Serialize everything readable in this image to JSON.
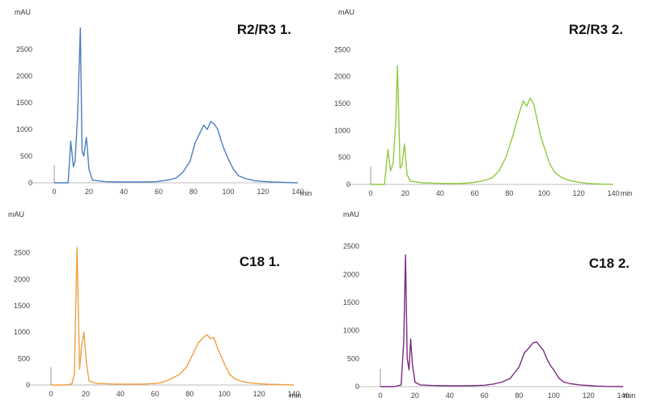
{
  "chart_data": [
    {
      "type": "line",
      "title": "R2/R3 1.",
      "ylabel": "mAU",
      "xlabel": "min",
      "xlim": [
        0,
        140
      ],
      "ylim": [
        0,
        3000
      ],
      "xticks": [
        "0",
        "20",
        "40",
        "60",
        "80",
        "100",
        "120",
        "140"
      ],
      "yticks": [
        "0",
        "500",
        "1000",
        "1500",
        "2000",
        "2500"
      ],
      "color": "#4a7fc1",
      "grid": false,
      "series": [
        {
          "x": [
            0,
            4,
            8,
            9.5,
            11,
            12,
            13.5,
            15,
            16,
            17,
            18.5,
            20,
            22,
            30,
            40,
            50,
            58,
            62,
            66,
            70,
            74,
            78,
            81,
            84,
            86,
            88,
            90,
            92,
            94,
            96,
            98,
            100,
            103,
            106,
            110,
            115,
            120,
            125,
            130,
            135,
            140
          ],
          "y": [
            0,
            0,
            0,
            780,
            300,
            400,
            1300,
            2900,
            600,
            500,
            850,
            250,
            50,
            20,
            15,
            15,
            20,
            35,
            55,
            90,
            200,
            400,
            750,
            950,
            1080,
            1000,
            1150,
            1100,
            1000,
            780,
            600,
            450,
            250,
            130,
            80,
            40,
            25,
            15,
            10,
            5,
            0
          ]
        }
      ]
    },
    {
      "type": "line",
      "title": "R2/R3 2.",
      "ylabel": "mAU",
      "xlabel": "min",
      "xlim": [
        0,
        140
      ],
      "ylim": [
        0,
        3000
      ],
      "xticks": [
        "0",
        "20",
        "40",
        "60",
        "80",
        "100",
        "120",
        "140"
      ],
      "yticks": [
        "0",
        "500",
        "1000",
        "1500",
        "2000",
        "2500"
      ],
      "color": "#8fca3e",
      "grid": false,
      "series": [
        {
          "x": [
            0,
            5,
            8,
            10,
            11.5,
            13,
            14.5,
            15.5,
            17,
            18,
            19.5,
            21,
            23,
            30,
            40,
            50,
            58,
            64,
            70,
            74,
            78,
            82,
            85,
            88,
            90,
            92,
            94,
            96,
            98,
            100,
            103,
            106,
            110,
            115,
            120,
            125,
            130,
            135,
            140
          ],
          "y": [
            0,
            0,
            0,
            650,
            250,
            400,
            1200,
            2200,
            300,
            350,
            750,
            180,
            60,
            30,
            20,
            15,
            30,
            60,
            120,
            250,
            500,
            900,
            1250,
            1550,
            1450,
            1600,
            1500,
            1200,
            900,
            700,
            400,
            230,
            130,
            70,
            40,
            20,
            10,
            5,
            0
          ]
        }
      ]
    },
    {
      "type": "line",
      "title": "C18 1.",
      "ylabel": "mAU",
      "xlabel": "min",
      "xlim": [
        0,
        140
      ],
      "ylim": [
        0,
        3000
      ],
      "xticks": [
        "0",
        "20",
        "40",
        "60",
        "80",
        "100",
        "120",
        "140"
      ],
      "yticks": [
        "0",
        "500",
        "1000",
        "1500",
        "2000",
        "2500"
      ],
      "color": "#f0a040",
      "grid": false,
      "series": [
        {
          "x": [
            0,
            8,
            12,
            13.5,
            15,
            16.5,
            17.5,
            19,
            20.5,
            22,
            26,
            35,
            45,
            55,
            62,
            66,
            70,
            74,
            78,
            82,
            85,
            88,
            90,
            92,
            94,
            96,
            98,
            100,
            103,
            106,
            110,
            115,
            120,
            125,
            130,
            135,
            140
          ],
          "y": [
            0,
            0,
            20,
            200,
            2600,
            300,
            700,
            1000,
            400,
            80,
            30,
            20,
            15,
            20,
            35,
            70,
            130,
            200,
            330,
            600,
            800,
            900,
            950,
            880,
            900,
            700,
            550,
            400,
            200,
            120,
            70,
            40,
            25,
            15,
            10,
            5,
            0
          ]
        }
      ]
    },
    {
      "type": "line",
      "title": "C18 2.",
      "ylabel": "mAU",
      "xlabel": "min",
      "xlim": [
        0,
        140
      ],
      "ylim": [
        0,
        3000
      ],
      "xticks": [
        "0",
        "20",
        "40",
        "60",
        "80",
        "100",
        "120",
        "140"
      ],
      "yticks": [
        "0",
        "500",
        "1000",
        "1500",
        "2000",
        "2500"
      ],
      "color": "#7b2b7e",
      "grid": false,
      "series": [
        {
          "x": [
            0,
            8,
            12,
            13.5,
            14.5,
            15.5,
            16.5,
            17.5,
            18.5,
            20,
            23,
            30,
            40,
            50,
            60,
            65,
            70,
            75,
            80,
            83,
            86,
            88,
            90,
            92,
            94,
            96,
            98,
            100,
            103,
            106,
            110,
            115,
            120,
            125,
            130,
            135,
            140
          ],
          "y": [
            0,
            0,
            30,
            800,
            2350,
            500,
            300,
            850,
            400,
            80,
            30,
            20,
            15,
            15,
            25,
            45,
            80,
            150,
            350,
            600,
            700,
            780,
            800,
            720,
            650,
            500,
            380,
            300,
            150,
            80,
            50,
            30,
            20,
            10,
            5,
            3,
            0
          ]
        }
      ]
    }
  ]
}
